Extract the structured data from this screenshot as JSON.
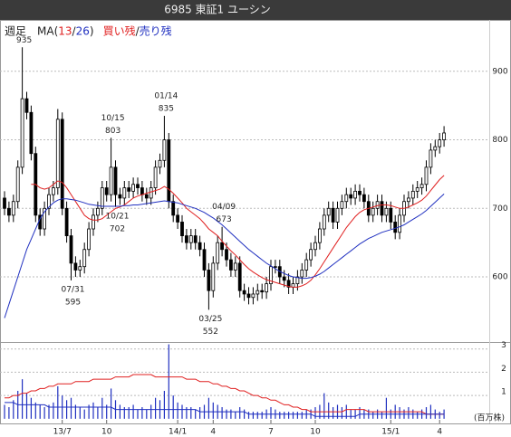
{
  "chart_data": {
    "type": "candlestick",
    "title": "6985 東証1 ユーシン",
    "period": "週足",
    "legend_text": {
      "open": "MA(",
      "sep": "/",
      "close": ")",
      "margin_sep": "/"
    },
    "categories": [
      null,
      null,
      null,
      null,
      null,
      null,
      null,
      null,
      null,
      null,
      null,
      null,
      null,
      "13/7",
      null,
      null,
      null,
      null,
      null,
      null,
      null,
      null,
      null,
      "10",
      null,
      null,
      null,
      null,
      null,
      null,
      null,
      null,
      null,
      null,
      null,
      null,
      null,
      null,
      null,
      "14/1",
      null,
      null,
      null,
      null,
      null,
      null,
      null,
      "4",
      null,
      null,
      null,
      null,
      null,
      null,
      null,
      null,
      null,
      null,
      null,
      null,
      "7",
      null,
      null,
      null,
      null,
      null,
      null,
      null,
      null,
      null,
      "10",
      null,
      null,
      null,
      null,
      null,
      null,
      null,
      null,
      null,
      null,
      null,
      null,
      null,
      null,
      null,
      null,
      "15/1",
      null,
      null,
      null,
      null,
      null,
      null,
      null,
      null,
      null,
      null,
      "4",
      null
    ],
    "open": [
      715,
      700,
      690,
      710,
      760,
      860,
      840,
      780,
      690,
      670,
      700,
      720,
      730,
      830,
      700,
      660,
      620,
      610,
      615,
      640,
      670,
      690,
      700,
      730,
      720,
      760,
      720,
      715,
      730,
      725,
      735,
      730,
      720,
      715,
      730,
      760,
      770,
      800,
      710,
      690,
      680,
      660,
      650,
      660,
      650,
      640,
      610,
      580,
      620,
      650,
      640,
      625,
      610,
      620,
      580,
      575,
      570,
      575,
      580,
      578,
      590,
      615,
      615,
      600,
      595,
      585,
      590,
      600,
      610,
      625,
      640,
      650,
      670,
      690,
      700,
      680,
      700,
      710,
      720,
      715,
      725,
      720,
      710,
      690,
      700,
      710,
      690,
      700,
      680,
      665,
      690,
      710,
      715,
      725,
      730,
      735,
      760,
      785,
      790,
      800
    ],
    "high": [
      725,
      710,
      720,
      770,
      935,
      870,
      850,
      790,
      700,
      710,
      730,
      740,
      845,
      840,
      710,
      670,
      630,
      625,
      650,
      680,
      700,
      710,
      740,
      740,
      803,
      770,
      730,
      740,
      740,
      745,
      745,
      740,
      730,
      740,
      770,
      780,
      835,
      810,
      720,
      700,
      690,
      670,
      670,
      670,
      660,
      650,
      620,
      630,
      660,
      673,
      650,
      635,
      630,
      630,
      590,
      585,
      585,
      590,
      590,
      600,
      625,
      625,
      625,
      610,
      605,
      600,
      610,
      620,
      635,
      650,
      660,
      680,
      700,
      710,
      710,
      710,
      720,
      730,
      730,
      735,
      735,
      730,
      720,
      710,
      720,
      720,
      710,
      710,
      690,
      700,
      720,
      725,
      735,
      740,
      745,
      770,
      795,
      800,
      810,
      820
    ],
    "low": [
      690,
      680,
      680,
      700,
      750,
      830,
      770,
      680,
      660,
      660,
      690,
      710,
      720,
      690,
      650,
      595,
      600,
      600,
      605,
      630,
      660,
      680,
      690,
      710,
      710,
      702,
      705,
      705,
      715,
      715,
      720,
      710,
      705,
      705,
      720,
      750,
      760,
      700,
      680,
      670,
      650,
      640,
      640,
      640,
      630,
      600,
      552,
      570,
      610,
      630,
      615,
      600,
      600,
      570,
      565,
      560,
      560,
      565,
      568,
      568,
      580,
      605,
      590,
      585,
      575,
      575,
      580,
      590,
      600,
      615,
      630,
      640,
      660,
      680,
      670,
      670,
      690,
      700,
      705,
      705,
      710,
      700,
      680,
      680,
      690,
      680,
      680,
      670,
      655,
      655,
      680,
      700,
      705,
      715,
      720,
      725,
      750,
      775,
      780,
      790
    ],
    "close": [
      700,
      690,
      710,
      760,
      860,
      840,
      780,
      690,
      670,
      700,
      720,
      730,
      830,
      700,
      660,
      620,
      610,
      615,
      640,
      670,
      690,
      700,
      730,
      720,
      760,
      720,
      715,
      730,
      725,
      735,
      730,
      720,
      715,
      730,
      760,
      770,
      800,
      710,
      690,
      680,
      660,
      650,
      660,
      650,
      640,
      610,
      580,
      620,
      650,
      640,
      625,
      610,
      620,
      580,
      575,
      570,
      575,
      580,
      578,
      590,
      615,
      615,
      600,
      595,
      585,
      590,
      600,
      610,
      625,
      640,
      650,
      670,
      690,
      700,
      680,
      700,
      710,
      720,
      715,
      725,
      720,
      710,
      690,
      700,
      710,
      690,
      700,
      680,
      665,
      690,
      710,
      715,
      725,
      730,
      735,
      760,
      785,
      790,
      800,
      810
    ],
    "up_color": "#ffffff",
    "down_color": "#000000",
    "series": [
      {
        "name": "13",
        "color": "#e02020",
        "values": [
          null,
          null,
          null,
          null,
          null,
          null,
          735,
          735,
          730,
          728,
          730,
          735,
          740,
          738,
          730,
          720,
          710,
          700,
          690,
          685,
          683,
          683,
          685,
          690,
          695,
          700,
          702,
          705,
          710,
          715,
          718,
          720,
          722,
          724,
          726,
          728,
          732,
          728,
          722,
          715,
          708,
          700,
          695,
          690,
          685,
          678,
          670,
          665,
          660,
          652,
          645,
          638,
          632,
          625,
          618,
          612,
          607,
          603,
          599,
          596,
          594,
          592,
          590,
          588,
          586,
          585,
          585,
          587,
          590,
          595,
          603,
          612,
          622,
          632,
          642,
          652,
          662,
          672,
          680,
          688,
          694,
          698,
          700,
          702,
          704,
          705,
          705,
          704,
          702,
          700,
          700,
          702,
          705,
          708,
          712,
          718,
          726,
          734,
          742,
          748
        ]
      },
      {
        "name": "26",
        "color": "#2030c0",
        "values": [
          540,
          560,
          580,
          600,
          620,
          640,
          655,
          670,
          685,
          695,
          702,
          708,
          712,
          714,
          714,
          713,
          712,
          710,
          708,
          706,
          705,
          704,
          703,
          703,
          703,
          703,
          703,
          704,
          704,
          705,
          705,
          706,
          707,
          708,
          709,
          710,
          711,
          710,
          709,
          708,
          706,
          704,
          702,
          700,
          697,
          694,
          690,
          686,
          681,
          676,
          670,
          664,
          658,
          652,
          646,
          640,
          635,
          630,
          625,
          620,
          616,
          612,
          608,
          605,
          602,
          600,
          599,
          598,
          598,
          599,
          601,
          604,
          608,
          613,
          618,
          623,
          628,
          633,
          638,
          643,
          648,
          652,
          656,
          659,
          662,
          665,
          667,
          669,
          671,
          673,
          676,
          680,
          684,
          688,
          692,
          697,
          703,
          709,
          715,
          721
        ]
      }
    ],
    "ylim": [
      505,
      975
    ],
    "yticks": [
      600,
      700,
      800,
      900
    ],
    "grid": true,
    "annotations": [
      {
        "price": 935,
        "kind": "high"
      },
      {
        "date": "10/15",
        "price": 803,
        "kind": "high"
      },
      {
        "date": "01/14",
        "price": 835,
        "kind": "high"
      },
      {
        "date": "10/21",
        "price": 702,
        "kind": "low"
      },
      {
        "date": "04/09",
        "price": 673,
        "kind": "high"
      },
      {
        "date": "07/31",
        "price": 595,
        "kind": "low"
      },
      {
        "date": "03/25",
        "price": 552,
        "kind": "low"
      }
    ],
    "volume": {
      "unit": "(百万株)",
      "color": "#2030c0",
      "values": [
        0.6,
        0.5,
        0.8,
        1.2,
        1.7,
        1.1,
        0.9,
        0.7,
        0.6,
        0.5,
        0.6,
        0.7,
        1.4,
        1.0,
        0.8,
        0.9,
        0.6,
        0.5,
        0.4,
        0.6,
        0.7,
        0.5,
        0.9,
        0.6,
        1.3,
        0.8,
        0.6,
        0.5,
        0.5,
        0.6,
        0.4,
        0.5,
        0.4,
        0.6,
        0.9,
        0.8,
        1.2,
        3.2,
        1.0,
        0.7,
        0.6,
        0.5,
        0.5,
        0.4,
        0.5,
        0.6,
        0.9,
        0.7,
        0.6,
        0.5,
        0.4,
        0.4,
        0.3,
        0.5,
        0.4,
        0.3,
        0.3,
        0.3,
        0.3,
        0.4,
        0.5,
        0.4,
        0.3,
        0.3,
        0.3,
        0.3,
        0.3,
        0.3,
        0.4,
        0.4,
        0.5,
        0.6,
        1.1,
        0.7,
        0.5,
        0.6,
        0.5,
        0.6,
        0.4,
        0.4,
        0.5,
        0.4,
        0.4,
        0.3,
        0.4,
        0.3,
        0.9,
        0.4,
        0.6,
        0.5,
        0.4,
        0.5,
        0.4,
        0.3,
        0.4,
        0.5,
        0.6,
        0.4,
        0.3,
        0.4
      ],
      "ylim": [
        -0.2,
        3.3
      ],
      "yticks": [
        1,
        2,
        3
      ],
      "series": [
        {
          "name": "買い残",
          "color": "#e02020",
          "values": [
            0.9,
            0.9,
            1.0,
            1.0,
            1.1,
            1.1,
            1.2,
            1.2,
            1.3,
            1.3,
            1.4,
            1.4,
            1.5,
            1.5,
            1.5,
            1.5,
            1.6,
            1.6,
            1.6,
            1.6,
            1.7,
            1.7,
            1.7,
            1.7,
            1.7,
            1.8,
            1.8,
            1.8,
            1.8,
            1.9,
            1.9,
            1.9,
            1.9,
            1.9,
            1.8,
            1.8,
            1.8,
            1.8,
            1.8,
            1.8,
            1.8,
            1.7,
            1.7,
            1.7,
            1.6,
            1.6,
            1.6,
            1.5,
            1.5,
            1.4,
            1.4,
            1.3,
            1.3,
            1.2,
            1.2,
            1.1,
            1.0,
            1.0,
            0.9,
            0.9,
            0.8,
            0.8,
            0.7,
            0.6,
            0.6,
            0.5,
            0.5,
            0.4,
            0.4,
            0.3,
            0.3,
            0.3,
            0.3,
            0.3,
            0.3,
            0.3,
            0.3,
            0.4,
            0.4,
            0.4,
            0.4,
            0.4,
            0.3,
            0.3,
            0.3,
            0.3,
            0.3,
            0.3,
            0.3,
            0.3,
            0.3,
            0.3,
            0.3,
            0.3,
            0.3,
            0.2,
            0.2,
            0.2,
            0.2,
            0.2
          ]
        },
        {
          "name": "売り残",
          "color": "#2030c0",
          "values": [
            0.7,
            0.7,
            0.7,
            0.6,
            0.6,
            0.6,
            0.6,
            0.6,
            0.6,
            0.6,
            0.5,
            0.5,
            0.5,
            0.5,
            0.5,
            0.5,
            0.5,
            0.5,
            0.5,
            0.5,
            0.5,
            0.5,
            0.5,
            0.5,
            0.5,
            0.4,
            0.4,
            0.4,
            0.4,
            0.4,
            0.4,
            0.4,
            0.4,
            0.4,
            0.4,
            0.4,
            0.4,
            0.4,
            0.4,
            0.4,
            0.4,
            0.4,
            0.4,
            0.4,
            0.3,
            0.3,
            0.3,
            0.3,
            0.3,
            0.3,
            0.3,
            0.3,
            0.3,
            0.3,
            0.3,
            0.2,
            0.2,
            0.2,
            0.2,
            0.2,
            0.2,
            0.2,
            0.2,
            0.2,
            0.2,
            0.2,
            0.2,
            0.2,
            0.2,
            0.2,
            0.1,
            0.1,
            0.1,
            0.1,
            0.1,
            0.1,
            0.1,
            0.1,
            0.1,
            0.1,
            0.2,
            0.2,
            0.2,
            0.2,
            0.2,
            0.2,
            0.2,
            0.2,
            0.2,
            0.2,
            0.2,
            0.2,
            0.2,
            0.2,
            0.2,
            0.2,
            0.2,
            0.2,
            0.2,
            0.2
          ]
        }
      ]
    }
  }
}
